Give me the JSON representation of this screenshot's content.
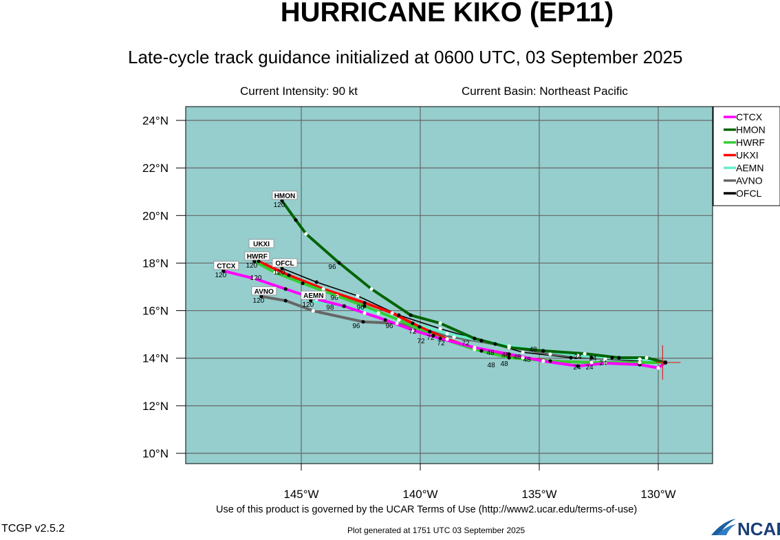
{
  "header": {
    "title": "HURRICANE KIKO (EP11)",
    "subtitle": "Late-cycle track guidance initialized at 0600 UTC, 03 September 2025",
    "intensity": "Current Intensity: 90 kt",
    "basin": "Current Basin: Northeast Pacific"
  },
  "footer": {
    "terms": "Use of this product is governed by the UCAR Terms of Use (http://www2.ucar.edu/terms-of-use)",
    "version": "TCGP v2.5.2",
    "generated": "Plot generated at 1751 UTC   03 September 2025",
    "logo": "NCAR"
  },
  "chart_data": {
    "type": "line",
    "lon_range_w": [
      149.85,
      127.7
    ],
    "lat_range_n": [
      9.57,
      24.58
    ],
    "x_ticks": [
      {
        "v": 145,
        "label": "145°W"
      },
      {
        "v": 140,
        "label": "140°W"
      },
      {
        "v": 135,
        "label": "135°W"
      },
      {
        "v": 130,
        "label": "130°W"
      }
    ],
    "y_ticks": [
      {
        "v": 24,
        "label": "24°N"
      },
      {
        "v": 22,
        "label": "22°N"
      },
      {
        "v": 20,
        "label": "20°N"
      },
      {
        "v": 18,
        "label": "18°N"
      },
      {
        "v": 16,
        "label": "16°N"
      },
      {
        "v": 14,
        "label": "14°N"
      },
      {
        "v": 12,
        "label": "12°N"
      },
      {
        "v": 10,
        "label": "10°N"
      }
    ],
    "grid": true,
    "legend_position": "top-right-outside",
    "ocean_color": "#96cdcd",
    "current_position": [
      129.7,
      13.82
    ],
    "end_hour_label": "120",
    "series": [
      {
        "name": "CTCX",
        "color": "#ff00ff",
        "points": [
          [
            129.7,
            13.82
          ],
          [
            130,
            13.59
          ],
          [
            130.78,
            13.73
          ],
          [
            132.23,
            13.79
          ],
          [
            133.38,
            13.67
          ],
          [
            134.83,
            13.88
          ],
          [
            136.27,
            14.17
          ],
          [
            137.72,
            14.45
          ],
          [
            139.16,
            14.83
          ],
          [
            140.32,
            15.18
          ],
          [
            141.47,
            15.61
          ],
          [
            142.34,
            15.9
          ],
          [
            143.2,
            16.19
          ],
          [
            144.36,
            16.48
          ],
          [
            145.66,
            16.91
          ],
          [
            146.97,
            17.35
          ],
          [
            148.27,
            17.67
          ]
        ]
      },
      {
        "name": "HMON",
        "color": "#006400",
        "points": [
          [
            129.7,
            13.82
          ],
          [
            130.49,
            14.02
          ],
          [
            131.65,
            14.02
          ],
          [
            133.09,
            14.19
          ],
          [
            134.83,
            14.31
          ],
          [
            136.27,
            14.45
          ],
          [
            137.72,
            14.83
          ],
          [
            139.16,
            15.47
          ],
          [
            140.4,
            15.81
          ],
          [
            142.05,
            16.91
          ],
          [
            143.41,
            18.01
          ],
          [
            144.8,
            19.23
          ],
          [
            145.23,
            19.81
          ],
          [
            145.81,
            20.62
          ]
        ]
      },
      {
        "name": "HWRF",
        "color": "#33cc33",
        "points": [
          [
            129.7,
            13.82
          ],
          [
            130.78,
            13.82
          ],
          [
            132.8,
            13.82
          ],
          [
            134.54,
            13.88
          ],
          [
            136.27,
            14.02
          ],
          [
            137.72,
            14.37
          ],
          [
            139.45,
            14.95
          ],
          [
            140.9,
            15.61
          ],
          [
            142.34,
            16.19
          ],
          [
            143.5,
            16.62
          ],
          [
            144.94,
            17.15
          ],
          [
            146.1,
            17.6
          ],
          [
            146.97,
            18.07
          ]
        ]
      },
      {
        "name": "UKXI",
        "color": "#ff0000",
        "points": [
          [
            129.7,
            13.82
          ],
          [
            132.8,
            13.82
          ],
          [
            134.54,
            13.88
          ],
          [
            135.69,
            14.02
          ],
          [
            137.43,
            14.31
          ],
          [
            138.87,
            14.8
          ],
          [
            140.03,
            15.32
          ],
          [
            141.18,
            15.9
          ],
          [
            142.34,
            16.33
          ],
          [
            144.07,
            16.91
          ],
          [
            145.52,
            17.49
          ],
          [
            146.79,
            18.07
          ]
        ]
      },
      {
        "name": "AEMN",
        "color": "#66eecc",
        "points": [
          [
            129.7,
            13.82
          ],
          [
            130.78,
            13.96
          ],
          [
            131.94,
            14.02
          ],
          [
            133.38,
            14.11
          ],
          [
            134.83,
            14.31
          ],
          [
            136.27,
            14.51
          ],
          [
            137.43,
            14.74
          ],
          [
            138.87,
            15.03
          ],
          [
            140.32,
            15.47
          ],
          [
            141.76,
            15.9
          ],
          [
            143.2,
            16.19
          ],
          [
            144.6,
            16.42
          ]
        ]
      },
      {
        "name": "AVNO",
        "color": "#666666",
        "points": [
          [
            129.7,
            13.82
          ],
          [
            130.78,
            13.96
          ],
          [
            132.8,
            14.02
          ],
          [
            134.54,
            14.17
          ],
          [
            136.85,
            14.6
          ],
          [
            138.58,
            14.89
          ],
          [
            139.6,
            15.12
          ],
          [
            140.98,
            15.47
          ],
          [
            142.4,
            15.53
          ],
          [
            144.5,
            15.99
          ],
          [
            145.66,
            16.42
          ],
          [
            146.68,
            16.6
          ]
        ]
      },
      {
        "name": "OFCL",
        "color": "#000000",
        "points": [
          [
            129.7,
            13.82
          ],
          [
            132.23,
            13.96
          ],
          [
            133.67,
            14.02
          ],
          [
            135.69,
            14.25
          ],
          [
            137.43,
            14.74
          ],
          [
            139.16,
            15.24
          ],
          [
            140.9,
            15.81
          ],
          [
            142.63,
            16.62
          ],
          [
            144.36,
            17.2
          ],
          [
            145.81,
            17.78
          ]
        ]
      }
    ],
    "hour_labels": [
      {
        "t": "96",
        "lon": 143.7,
        "lat": 17.87
      },
      {
        "t": "96",
        "lon": 143.61,
        "lat": 16.57
      },
      {
        "t": "98",
        "lon": 143.79,
        "lat": 16.16
      },
      {
        "t": "96",
        "lon": 142.51,
        "lat": 16.16
      },
      {
        "t": "96",
        "lon": 142.69,
        "lat": 15.38
      },
      {
        "t": "96",
        "lon": 141.3,
        "lat": 15.38
      },
      {
        "t": "72",
        "lon": 140.32,
        "lat": 15.15
      },
      {
        "t": "72",
        "lon": 139.97,
        "lat": 14.92
      },
      {
        "t": "72",
        "lon": 139.57,
        "lat": 14.89
      },
      {
        "t": "72",
        "lon": 139.13,
        "lat": 14.66
      },
      {
        "t": "72",
        "lon": 138.09,
        "lat": 14.66
      },
      {
        "t": "48",
        "lon": 137.05,
        "lat": 14.25
      },
      {
        "t": "48",
        "lon": 137.02,
        "lat": 14.08
      },
      {
        "t": "48",
        "lon": 136.42,
        "lat": 14.17
      },
      {
        "t": "48",
        "lon": 136.47,
        "lat": 13.96
      },
      {
        "t": "48",
        "lon": 136.1,
        "lat": 14.08
      },
      {
        "t": "48",
        "lon": 135.69,
        "lat": 13.96
      },
      {
        "t": "48",
        "lon": 135.26,
        "lat": 14.22
      },
      {
        "t": "24",
        "lon": 133.38,
        "lat": 14.08
      },
      {
        "t": "24",
        "lon": 133.41,
        "lat": 13.64
      },
      {
        "t": "24",
        "lon": 132.89,
        "lat": 13.64
      },
      {
        "t": "24",
        "lon": 132.75,
        "lat": 14.02
      },
      {
        "t": "24",
        "lon": 132.49,
        "lat": 13.82
      }
    ]
  }
}
